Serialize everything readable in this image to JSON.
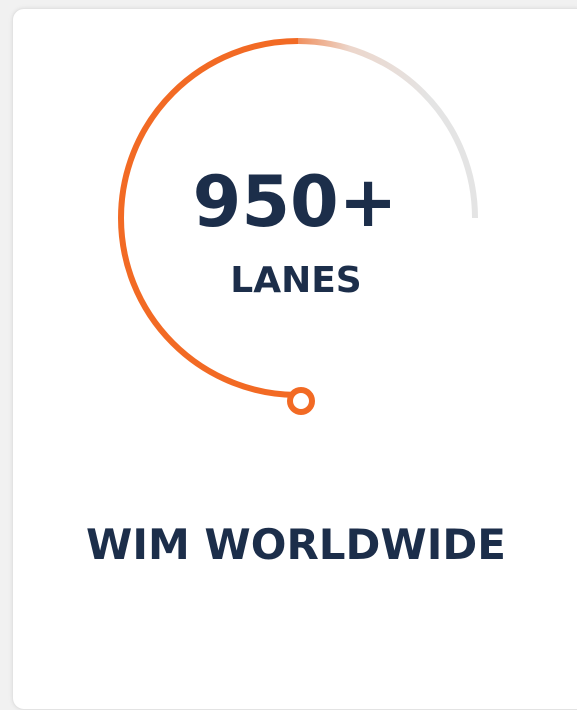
{
  "stat": {
    "value": "950+",
    "label": "LANES"
  },
  "caption": "WIM WORLDWIDE"
}
